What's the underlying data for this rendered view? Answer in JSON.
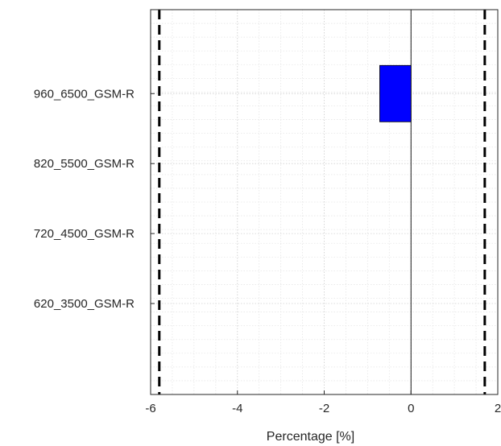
{
  "chart_data": {
    "type": "bar",
    "orientation": "horizontal",
    "title": "",
    "xlabel": "Percentage [%]",
    "ylabel": "",
    "xlim": [
      -6,
      2
    ],
    "x_ticks": [
      -6,
      -4,
      -2,
      0,
      2
    ],
    "categories": [
      "960_6500_GSM-R",
      "820_5500_GSM-R",
      "720_4500_GSM-R",
      "620_3500_GSM-R"
    ],
    "values": [
      -0.72,
      0,
      0,
      0
    ],
    "bar_color": "#0000ff",
    "reference_lines": [
      {
        "x": -5.8,
        "style": "dashed",
        "color": "#000000"
      },
      {
        "x": 1.7,
        "style": "dashed",
        "color": "#000000"
      },
      {
        "x": 0,
        "style": "solid",
        "color": "#000000"
      }
    ],
    "grid": true,
    "minor_grid": true,
    "legend": "none"
  }
}
